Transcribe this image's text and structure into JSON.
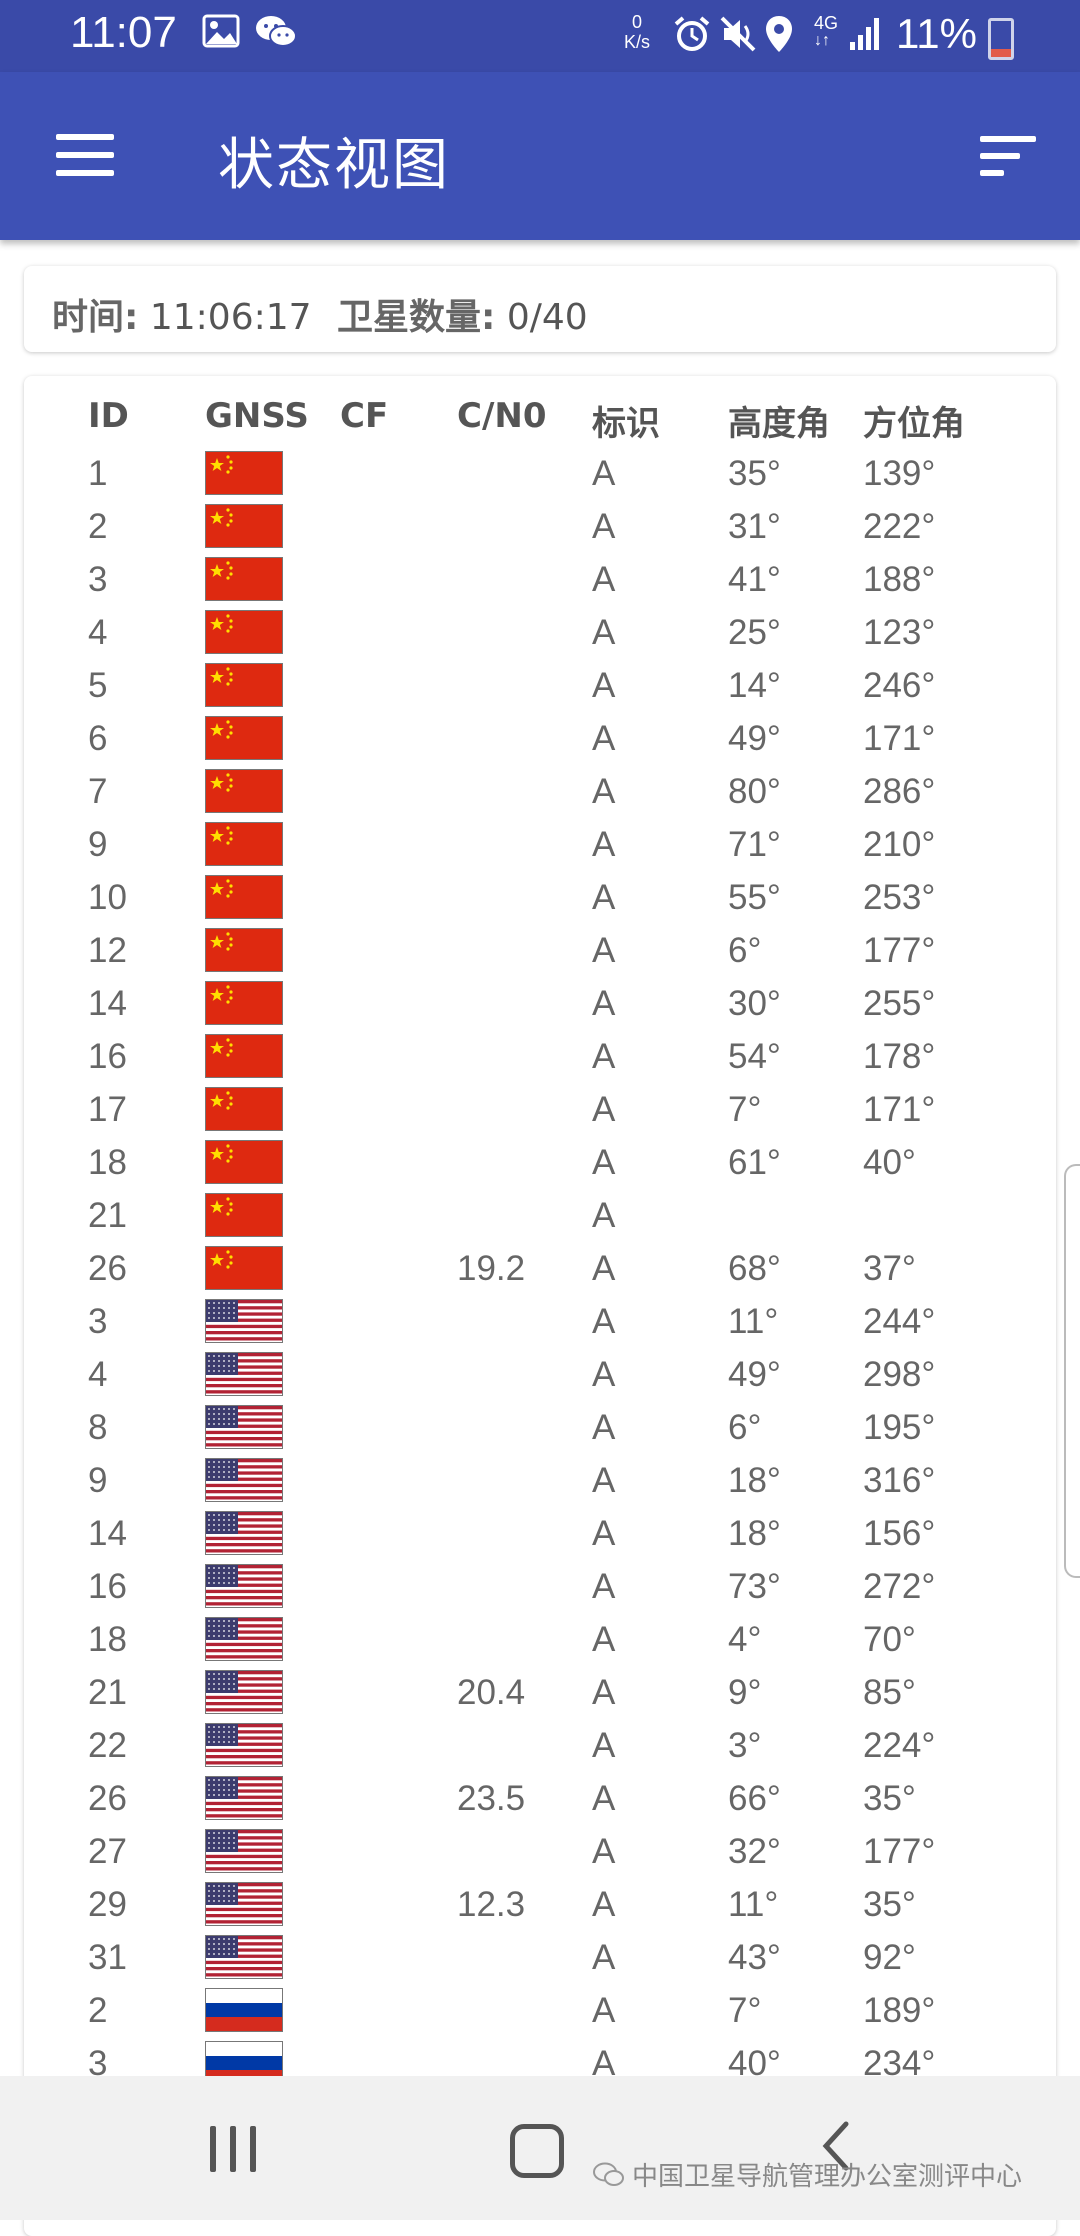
{
  "status_bar": {
    "time": "11:07",
    "net_speed_value": "0",
    "net_speed_unit": "K/s",
    "network": "4G",
    "battery": "11%",
    "icons": [
      "image-icon",
      "wechat-icon",
      "alarm-icon",
      "mute-icon",
      "location-icon",
      "signal-icon",
      "battery-icon"
    ]
  },
  "app_bar": {
    "title": "状态视图",
    "menu_icon": "hamburger-menu-icon",
    "sort_icon": "sort-icon"
  },
  "info": {
    "time_label": "时间:",
    "time_value": "11:06:17",
    "sat_label": "卫星数量:",
    "sat_value": "0/40"
  },
  "table": {
    "headers": {
      "id": "ID",
      "gnss": "GNSS",
      "cf": "CF",
      "cn0": "C/N0",
      "flag": "标识",
      "elevation": "高度角",
      "azimuth": "方位角"
    },
    "rows": [
      {
        "id": "1",
        "gnss": "china",
        "cf": "",
        "cn0": "",
        "flag": "A",
        "el": "35°",
        "az": "139°"
      },
      {
        "id": "2",
        "gnss": "china",
        "cf": "",
        "cn0": "",
        "flag": "A",
        "el": "31°",
        "az": "222°"
      },
      {
        "id": "3",
        "gnss": "china",
        "cf": "",
        "cn0": "",
        "flag": "A",
        "el": "41°",
        "az": "188°"
      },
      {
        "id": "4",
        "gnss": "china",
        "cf": "",
        "cn0": "",
        "flag": "A",
        "el": "25°",
        "az": "123°"
      },
      {
        "id": "5",
        "gnss": "china",
        "cf": "",
        "cn0": "",
        "flag": "A",
        "el": "14°",
        "az": "246°"
      },
      {
        "id": "6",
        "gnss": "china",
        "cf": "",
        "cn0": "",
        "flag": "A",
        "el": "49°",
        "az": "171°"
      },
      {
        "id": "7",
        "gnss": "china",
        "cf": "",
        "cn0": "",
        "flag": "A",
        "el": "80°",
        "az": "286°"
      },
      {
        "id": "9",
        "gnss": "china",
        "cf": "",
        "cn0": "",
        "flag": "A",
        "el": "71°",
        "az": "210°"
      },
      {
        "id": "10",
        "gnss": "china",
        "cf": "",
        "cn0": "",
        "flag": "A",
        "el": "55°",
        "az": "253°"
      },
      {
        "id": "12",
        "gnss": "china",
        "cf": "",
        "cn0": "",
        "flag": "A",
        "el": "6°",
        "az": "177°"
      },
      {
        "id": "14",
        "gnss": "china",
        "cf": "",
        "cn0": "",
        "flag": "A",
        "el": "30°",
        "az": "255°"
      },
      {
        "id": "16",
        "gnss": "china",
        "cf": "",
        "cn0": "",
        "flag": "A",
        "el": "54°",
        "az": "178°"
      },
      {
        "id": "17",
        "gnss": "china",
        "cf": "",
        "cn0": "",
        "flag": "A",
        "el": "7°",
        "az": "171°"
      },
      {
        "id": "18",
        "gnss": "china",
        "cf": "",
        "cn0": "",
        "flag": "A",
        "el": "61°",
        "az": "40°"
      },
      {
        "id": "21",
        "gnss": "china",
        "cf": "",
        "cn0": "",
        "flag": "A",
        "el": "",
        "az": ""
      },
      {
        "id": "26",
        "gnss": "china",
        "cf": "",
        "cn0": "19.2",
        "flag": "A",
        "el": "68°",
        "az": "37°"
      },
      {
        "id": "3",
        "gnss": "usa",
        "cf": "",
        "cn0": "",
        "flag": "A",
        "el": "11°",
        "az": "244°"
      },
      {
        "id": "4",
        "gnss": "usa",
        "cf": "",
        "cn0": "",
        "flag": "A",
        "el": "49°",
        "az": "298°"
      },
      {
        "id": "8",
        "gnss": "usa",
        "cf": "",
        "cn0": "",
        "flag": "A",
        "el": "6°",
        "az": "195°"
      },
      {
        "id": "9",
        "gnss": "usa",
        "cf": "",
        "cn0": "",
        "flag": "A",
        "el": "18°",
        "az": "316°"
      },
      {
        "id": "14",
        "gnss": "usa",
        "cf": "",
        "cn0": "",
        "flag": "A",
        "el": "18°",
        "az": "156°"
      },
      {
        "id": "16",
        "gnss": "usa",
        "cf": "",
        "cn0": "",
        "flag": "A",
        "el": "73°",
        "az": "272°"
      },
      {
        "id": "18",
        "gnss": "usa",
        "cf": "",
        "cn0": "",
        "flag": "A",
        "el": "4°",
        "az": "70°"
      },
      {
        "id": "21",
        "gnss": "usa",
        "cf": "",
        "cn0": "20.4",
        "flag": "A",
        "el": "9°",
        "az": "85°"
      },
      {
        "id": "22",
        "gnss": "usa",
        "cf": "",
        "cn0": "",
        "flag": "A",
        "el": "3°",
        "az": "224°"
      },
      {
        "id": "26",
        "gnss": "usa",
        "cf": "",
        "cn0": "23.5",
        "flag": "A",
        "el": "66°",
        "az": "35°"
      },
      {
        "id": "27",
        "gnss": "usa",
        "cf": "",
        "cn0": "",
        "flag": "A",
        "el": "32°",
        "az": "177°"
      },
      {
        "id": "29",
        "gnss": "usa",
        "cf": "",
        "cn0": "12.3",
        "flag": "A",
        "el": "11°",
        "az": "35°"
      },
      {
        "id": "31",
        "gnss": "usa",
        "cf": "",
        "cn0": "",
        "flag": "A",
        "el": "43°",
        "az": "92°"
      },
      {
        "id": "2",
        "gnss": "russia",
        "cf": "",
        "cn0": "",
        "flag": "A",
        "el": "7°",
        "az": "189°"
      },
      {
        "id": "3",
        "gnss": "russia",
        "cf": "",
        "cn0": "",
        "flag": "A",
        "el": "40°",
        "az": "234°"
      }
    ]
  },
  "nav_bar": {
    "recent_icon": "recent-apps-icon",
    "home_icon": "home-icon",
    "back_icon": "back-icon"
  },
  "watermark": {
    "text": "中国卫星导航管理办公室测评中心",
    "icon": "wechat-icon"
  },
  "colors": {
    "status_bar": "#3a4aa8",
    "app_bar": "#3e51b5",
    "china_red": "#de2910",
    "china_star": "#ffde00",
    "usa_blue": "#3c3b6e",
    "usa_red": "#b22234",
    "russia_blue": "#0039a6",
    "russia_red": "#d52b1e"
  }
}
